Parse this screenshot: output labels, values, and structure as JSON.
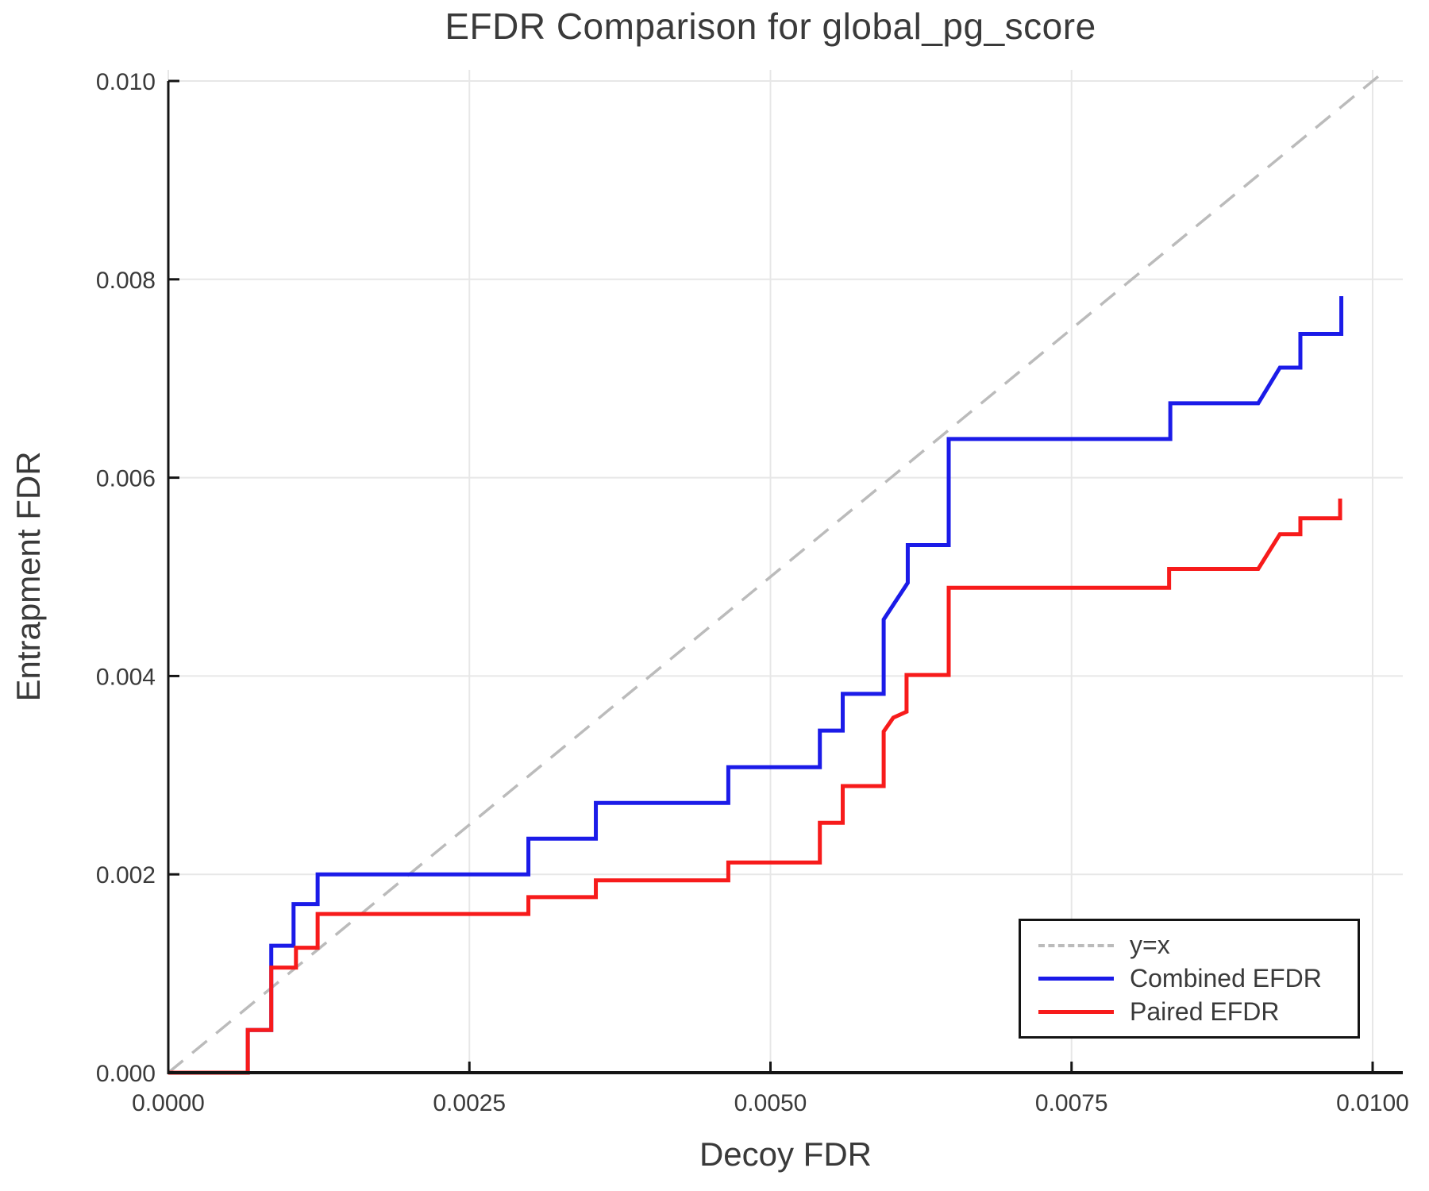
{
  "title": "EFDR Comparison for global_pg_score",
  "axes": {
    "x_label": "Decoy FDR",
    "y_label": "Entrapment FDR"
  },
  "legend": {
    "position": "lower right",
    "entries": [
      "y=x",
      "Combined EFDR",
      "Paired EFDR"
    ]
  },
  "chart_data": {
    "type": "line",
    "title": "EFDR Comparison for global_pg_score",
    "xlabel": "Decoy FDR",
    "ylabel": "Entrapment FDR",
    "xlim": [
      0,
      0.01
    ],
    "ylim": [
      0,
      0.01
    ],
    "grid": true,
    "legend_position": "lower right",
    "x_ticks": {
      "labels": [
        "0.0000",
        "0.0025",
        "0.0050",
        "0.0075",
        "0.0100"
      ],
      "values": [
        0,
        0.0025,
        0.005,
        0.0075,
        0.01
      ]
    },
    "y_ticks": {
      "labels": [
        "0.000",
        "0.002",
        "0.004",
        "0.006",
        "0.008",
        "0.010"
      ],
      "values": [
        0,
        0.002,
        0.004,
        0.006,
        0.008,
        0.01
      ]
    },
    "colors": {
      "identity_line": "#bbbbbb",
      "combined": "#1b1be8",
      "paired": "#f71b1b",
      "grid": "#e7e7e7",
      "axis": "#141414",
      "text": "#3a3a3a"
    },
    "series": [
      {
        "name": "y=x",
        "color": "#bbbbbb",
        "style": "dashed",
        "points": [
          [
            0,
            0
          ],
          [
            0.010112,
            0.010112
          ]
        ]
      },
      {
        "name": "Combined EFDR",
        "color": "#1b1be8",
        "style": "solid",
        "points": [
          [
            0,
            0
          ],
          [
            0.00066,
            0
          ],
          [
            0.00066,
            0.00043
          ],
          [
            0.000855,
            0.00043
          ],
          [
            0.000855,
            0.00128
          ],
          [
            0.00104,
            0.00128
          ],
          [
            0.00104,
            0.0017
          ],
          [
            0.00124,
            0.0017
          ],
          [
            0.00124,
            0.002
          ],
          [
            0.00299,
            0.002
          ],
          [
            0.00299,
            0.00236
          ],
          [
            0.00355,
            0.00236
          ],
          [
            0.00355,
            0.00272
          ],
          [
            0.00465,
            0.00272
          ],
          [
            0.00465,
            0.00308
          ],
          [
            0.00541,
            0.00308
          ],
          [
            0.00541,
            0.00345
          ],
          [
            0.0056,
            0.00345
          ],
          [
            0.0056,
            0.00382
          ],
          [
            0.00594,
            0.00382
          ],
          [
            0.00594,
            0.00457
          ],
          [
            0.00614,
            0.00494
          ],
          [
            0.00614,
            0.00532
          ],
          [
            0.00648,
            0.00532
          ],
          [
            0.00648,
            0.00639
          ],
          [
            0.00832,
            0.00639
          ],
          [
            0.00832,
            0.00675
          ],
          [
            0.00905,
            0.00675
          ],
          [
            0.00923,
            0.00711
          ],
          [
            0.0094,
            0.00711
          ],
          [
            0.0094,
            0.00745
          ],
          [
            0.00974,
            0.00745
          ],
          [
            0.00974,
            0.00783
          ]
        ]
      },
      {
        "name": "Paired EFDR",
        "color": "#f71b1b",
        "style": "solid",
        "points": [
          [
            0,
            0
          ],
          [
            0.00066,
            0
          ],
          [
            0.00066,
            0.00043
          ],
          [
            0.000855,
            0.00043
          ],
          [
            0.000855,
            0.00106
          ],
          [
            0.00106,
            0.00106
          ],
          [
            0.00106,
            0.00126
          ],
          [
            0.00124,
            0.00126
          ],
          [
            0.00124,
            0.0016
          ],
          [
            0.00299,
            0.0016
          ],
          [
            0.00299,
            0.00177
          ],
          [
            0.00355,
            0.00177
          ],
          [
            0.00355,
            0.00194
          ],
          [
            0.00465,
            0.00194
          ],
          [
            0.00465,
            0.00212
          ],
          [
            0.00541,
            0.00212
          ],
          [
            0.00541,
            0.00252
          ],
          [
            0.0056,
            0.00252
          ],
          [
            0.0056,
            0.00289
          ],
          [
            0.00594,
            0.00289
          ],
          [
            0.00594,
            0.00344
          ],
          [
            0.00602,
            0.00358
          ],
          [
            0.00613,
            0.00364
          ],
          [
            0.00613,
            0.00401
          ],
          [
            0.00648,
            0.00401
          ],
          [
            0.00648,
            0.00489
          ],
          [
            0.00831,
            0.00489
          ],
          [
            0.00831,
            0.00508
          ],
          [
            0.00905,
            0.00508
          ],
          [
            0.00923,
            0.00543
          ],
          [
            0.0094,
            0.00543
          ],
          [
            0.0094,
            0.00559
          ],
          [
            0.00973,
            0.00559
          ],
          [
            0.00973,
            0.00579
          ]
        ]
      }
    ]
  }
}
